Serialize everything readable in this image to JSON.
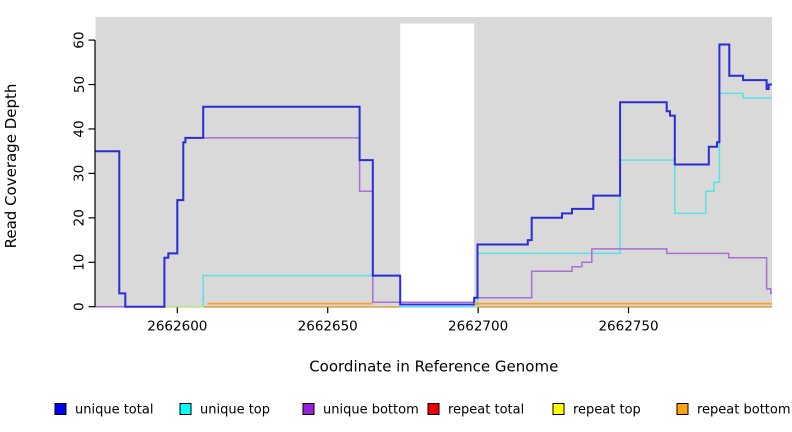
{
  "chart_data": {
    "type": "line",
    "subtype": "step",
    "title": "",
    "xlabel": "Coordinate in Reference Genome",
    "ylabel": "Read Coverage Depth",
    "x_domain": [
      2662572.8,
      2662797.7
    ],
    "y_domain": [
      0,
      65.2
    ],
    "x_ticks": [
      2662600,
      2662650,
      2662700,
      2662750
    ],
    "y_ticks": [
      0,
      10,
      20,
      30,
      40,
      50,
      60
    ],
    "grid": false,
    "panel_color": "#d9d9d9",
    "mask_region": {
      "x0": 2662674.1,
      "x1": 2662698.7
    },
    "legend_position": "bottom",
    "legend": [
      {
        "label": "unique total",
        "color": "#0000ee"
      },
      {
        "label": "unique top",
        "color": "#00ffff"
      },
      {
        "label": "unique bottom",
        "color": "#9a1fd8"
      },
      {
        "label": "repeat total",
        "color": "#ee0000"
      },
      {
        "label": "repeat top",
        "color": "#ffff00"
      },
      {
        "label": "repeat bottom",
        "color": "#ffa013"
      }
    ],
    "series": [
      {
        "name": "repeat total",
        "line_color": "#e03030",
        "width": 1.2,
        "segments": [
          [
            [
              2662572.8,
              0
            ],
            [
              2662674.1,
              0
            ]
          ],
          [
            [
              2662698.7,
              0
            ],
            [
              2662797.7,
              0
            ]
          ]
        ]
      },
      {
        "name": "unique top",
        "line_color": "#55e3e6",
        "width": 1.5,
        "segments": [
          [
            [
              2662572.8,
              0
            ],
            [
              2662608.6,
              7
            ],
            [
              2662674.1,
              0
            ],
            [
              2662698.7,
              0
            ],
            [
              2662699.8,
              12
            ],
            [
              2662747.2,
              33
            ],
            [
              2662765.4,
              21
            ],
            [
              2662775.7,
              26
            ],
            [
              2662778.4,
              28
            ],
            [
              2662780.2,
              48
            ],
            [
              2662788.1,
              47
            ],
            [
              2662797.7,
              47
            ]
          ]
        ]
      },
      {
        "name": "repeat top",
        "line_color": "#efe93c",
        "width": 1.2,
        "opacity": 0.8,
        "segments": [
          [
            [
              2662572.8,
              0
            ],
            [
              2662674.1,
              0
            ]
          ],
          [
            [
              2662698.7,
              0
            ],
            [
              2662797.7,
              0
            ]
          ]
        ]
      },
      {
        "name": "unique bottom",
        "line_color": "#a96fd4",
        "width": 1.5,
        "segments": [
          [
            [
              2662572.8,
              0
            ],
            [
              2662595.7,
              11
            ],
            [
              2662597,
              12
            ],
            [
              2662600,
              24
            ],
            [
              2662602,
              37
            ],
            [
              2662602.7,
              38
            ],
            [
              2662660.6,
              26
            ],
            [
              2662665,
              1
            ],
            [
              2662698.7,
              2
            ],
            [
              2662717.8,
              8
            ],
            [
              2662731.2,
              9
            ],
            [
              2662734.5,
              10
            ],
            [
              2662737.8,
              13
            ],
            [
              2662762.7,
              12
            ],
            [
              2662783.3,
              11
            ],
            [
              2662795.9,
              4
            ],
            [
              2662797.3,
              3
            ],
            [
              2662797.7,
              3
            ]
          ]
        ]
      },
      {
        "name": "unique total",
        "line_color": "#2b2bd9",
        "width": 2,
        "segments": [
          [
            [
              2662572.8,
              35
            ],
            [
              2662580.7,
              3
            ],
            [
              2662582.7,
              0
            ],
            [
              2662595.7,
              11
            ],
            [
              2662597,
              12
            ],
            [
              2662600,
              24
            ],
            [
              2662602,
              37
            ],
            [
              2662602.7,
              38
            ],
            [
              2662608.6,
              45
            ],
            [
              2662660.6,
              33
            ],
            [
              2662665,
              7
            ],
            [
              2662674.1,
              0.5
            ],
            [
              2662698.7,
              2
            ],
            [
              2662699.8,
              14
            ],
            [
              2662716.5,
              15
            ],
            [
              2662717.8,
              20
            ],
            [
              2662727.9,
              21
            ],
            [
              2662731.2,
              22
            ],
            [
              2662738.3,
              25
            ],
            [
              2662747.2,
              46
            ],
            [
              2662762.7,
              44
            ],
            [
              2662763.8,
              43
            ],
            [
              2662765.4,
              32
            ],
            [
              2662776.7,
              36
            ],
            [
              2662779.4,
              37
            ],
            [
              2662780.2,
              59
            ],
            [
              2662783.5,
              52
            ],
            [
              2662788.1,
              51
            ],
            [
              2662795.9,
              49
            ],
            [
              2662796.6,
              50
            ],
            [
              2662797.7,
              50
            ]
          ]
        ]
      },
      {
        "name": "repeat bottom",
        "line_color": "#ff9d1c",
        "width": 1.7,
        "segments": [
          [
            [
              2662610,
              0.7
            ],
            [
              2662665,
              0.7
            ]
          ],
          [
            [
              2662698.7,
              0.7
            ],
            [
              2662797.7,
              0.7
            ]
          ]
        ]
      }
    ]
  }
}
